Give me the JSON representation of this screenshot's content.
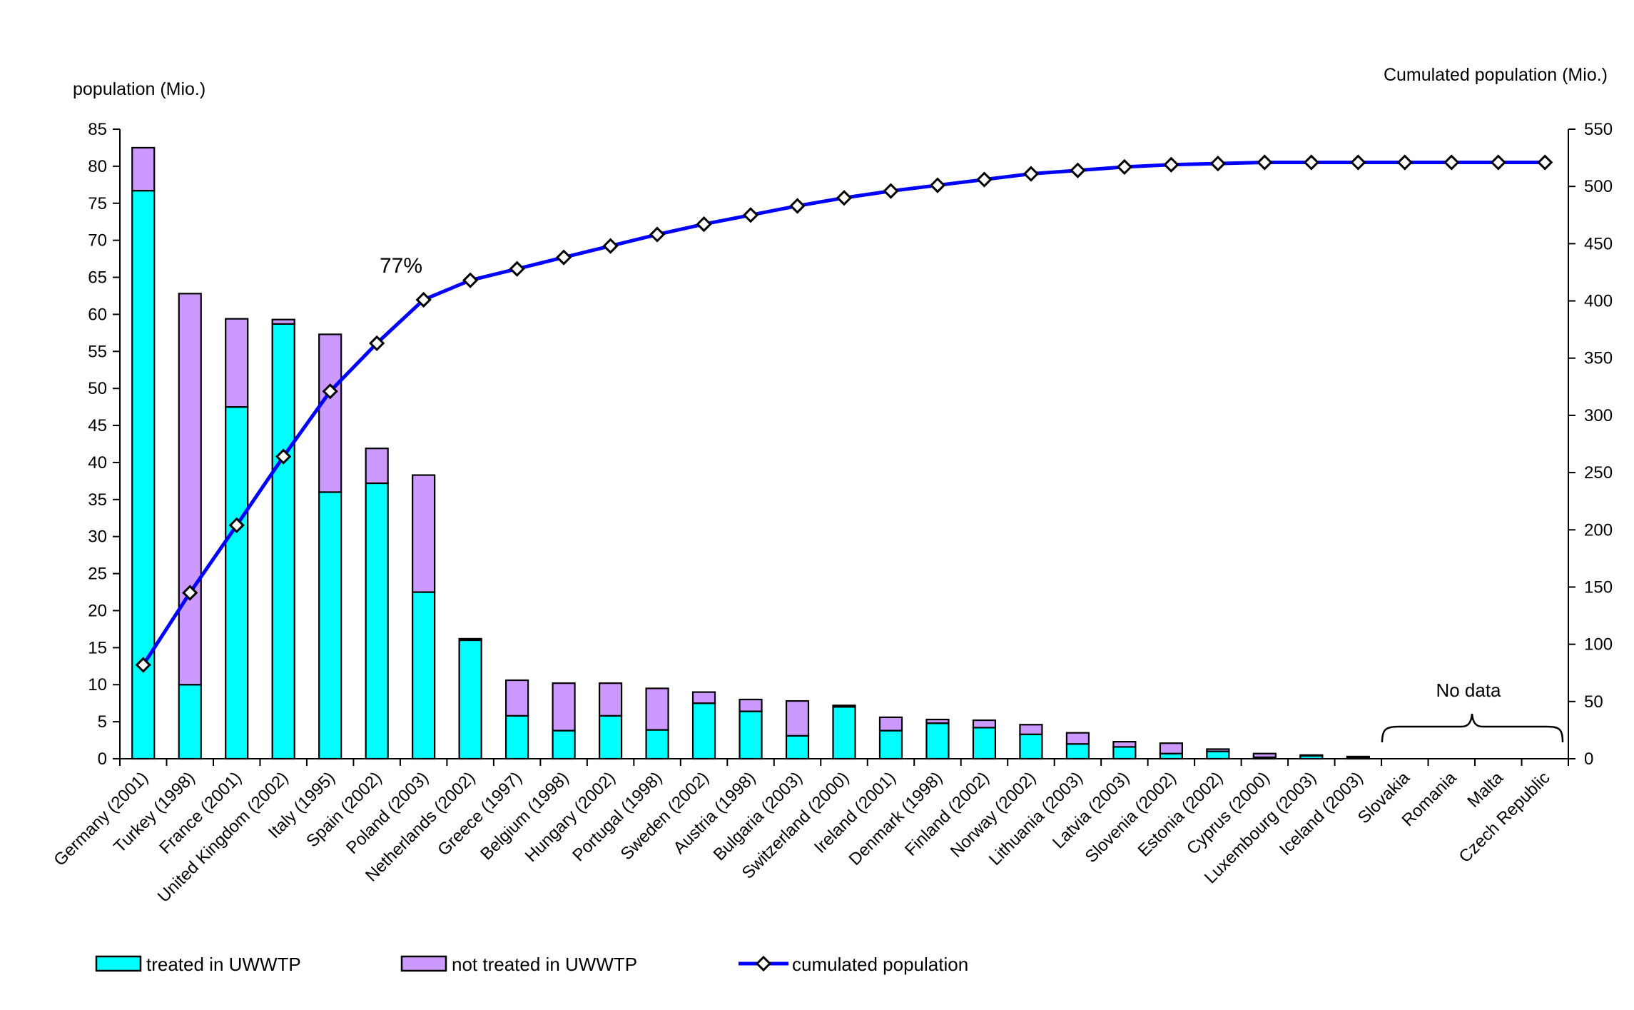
{
  "chart_data": {
    "type": "bar",
    "stacked": true,
    "y_label_left": "population (Mio.)",
    "y_label_right": "Cumulated population (Mio.)",
    "ylim_left": [
      0,
      85
    ],
    "yticks_left": [
      0,
      5,
      10,
      15,
      20,
      25,
      30,
      35,
      40,
      45,
      50,
      55,
      60,
      65,
      70,
      75,
      80,
      85
    ],
    "ylim_right": [
      0,
      550
    ],
    "yticks_right": [
      0,
      50,
      100,
      150,
      200,
      250,
      300,
      350,
      400,
      450,
      500,
      550
    ],
    "grid": false,
    "categories": [
      "Germany (2001)",
      "Turkey (1998)",
      "France (2001)",
      "United Kingdom (2002)",
      "Italy (1995)",
      "Spain (2002)",
      "Poland (2003)",
      "Netherlands (2002)",
      "Greece (1997)",
      "Belgium (1998)",
      "Hungary (2002)",
      "Portugal (1998)",
      "Sweden (2002)",
      "Austria (1998)",
      "Bulgaria (2003)",
      "Switzerland (2000)",
      "Ireland (2001)",
      "Denmark (1998)",
      "Finland (2002)",
      "Norway (2002)",
      "Lithuania (2003)",
      "Latvia (2003)",
      "Slovenia (2002)",
      "Estonia (2002)",
      "Cyprus (2000)",
      "Luxembourg (2003)",
      "Iceland (2003)",
      "Slovakia",
      "Romania",
      "Malta",
      "Czech Republic"
    ],
    "series": [
      {
        "name": "treated in UWWTP",
        "axis": "left",
        "color": "#00ffff",
        "values": [
          76.7,
          10.0,
          47.5,
          58.7,
          36.0,
          37.2,
          22.5,
          16.0,
          5.8,
          3.8,
          5.8,
          3.9,
          7.5,
          6.4,
          3.1,
          7.0,
          3.8,
          4.8,
          4.2,
          3.3,
          2.0,
          1.6,
          0.7,
          1.0,
          0.2,
          0.4,
          0.1,
          null,
          null,
          null,
          null
        ]
      },
      {
        "name": "not treated in UWWTP",
        "axis": "left",
        "color": "#cc99ff",
        "values": [
          5.8,
          52.8,
          11.9,
          0.6,
          21.3,
          4.7,
          15.8,
          0.2,
          4.8,
          6.4,
          4.4,
          5.6,
          1.5,
          1.6,
          4.7,
          0.2,
          1.8,
          0.5,
          1.0,
          1.3,
          1.5,
          0.7,
          1.4,
          0.3,
          0.5,
          0.1,
          0.2,
          null,
          null,
          null,
          null
        ]
      },
      {
        "name": "cumulated population",
        "type": "line",
        "axis": "right",
        "color": "#0000ff",
        "values": [
          82,
          145,
          204,
          264,
          321,
          363,
          401,
          418,
          428,
          438,
          448,
          458,
          467,
          475,
          483,
          490,
          496,
          501,
          506,
          511,
          514,
          517,
          519,
          520,
          521,
          521,
          521,
          521,
          521,
          521,
          521
        ]
      }
    ],
    "annotations": {
      "percent_label": "77%",
      "no_data_label": "No data"
    }
  }
}
